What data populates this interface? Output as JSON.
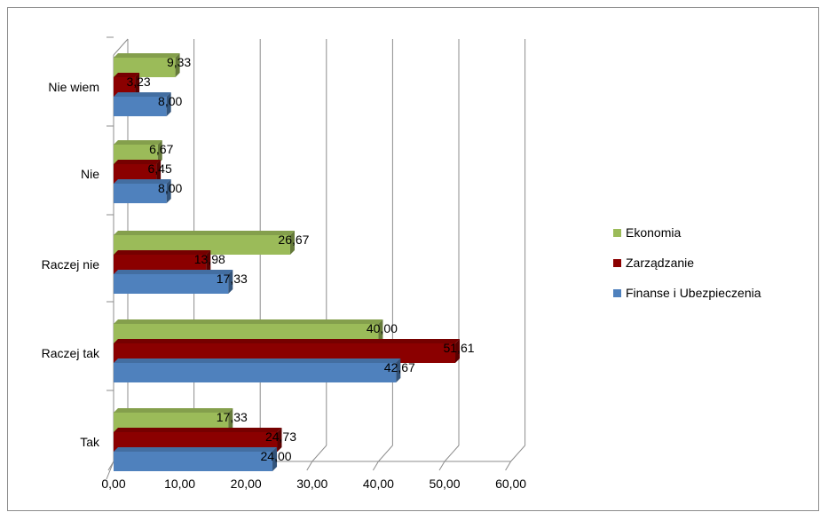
{
  "chart_data": {
    "type": "bar",
    "orientation": "horizontal",
    "style": "3d",
    "categories": [
      "Tak",
      "Raczej tak",
      "Raczej nie",
      "Nie",
      "Nie wiem"
    ],
    "series": [
      {
        "name": "Finanse i Ubezpieczenia",
        "color": "#4f81bd",
        "values": [
          24.0,
          42.67,
          17.33,
          8.0,
          8.0
        ],
        "labels": [
          "24,00",
          "42,67",
          "17,33",
          "8,00",
          "8,00"
        ]
      },
      {
        "name": "Zarządzanie",
        "color": "#8b0000",
        "values": [
          24.73,
          51.61,
          13.98,
          6.45,
          3.23
        ],
        "labels": [
          "24,73",
          "51,61",
          "13,98",
          "6,45",
          "3,23"
        ]
      },
      {
        "name": "Ekonomia",
        "color": "#9bbb59",
        "values": [
          17.33,
          40.0,
          26.67,
          6.67,
          9.33
        ],
        "labels": [
          "17,33",
          "40,00",
          "26,67",
          "6,67",
          "9,33"
        ]
      }
    ],
    "xlim": [
      0,
      60
    ],
    "xticks": [
      0,
      10,
      20,
      30,
      40,
      50,
      60
    ],
    "xtick_labels": [
      "0,00",
      "10,00",
      "20,00",
      "30,00",
      "40,00",
      "50,00",
      "60,00"
    ],
    "grid": true,
    "legend_position": "right",
    "legend_order": [
      "Ekonomia",
      "Zarządzanie",
      "Finanse i Ubezpieczenia"
    ],
    "title": "",
    "xlabel": "",
    "ylabel": ""
  }
}
